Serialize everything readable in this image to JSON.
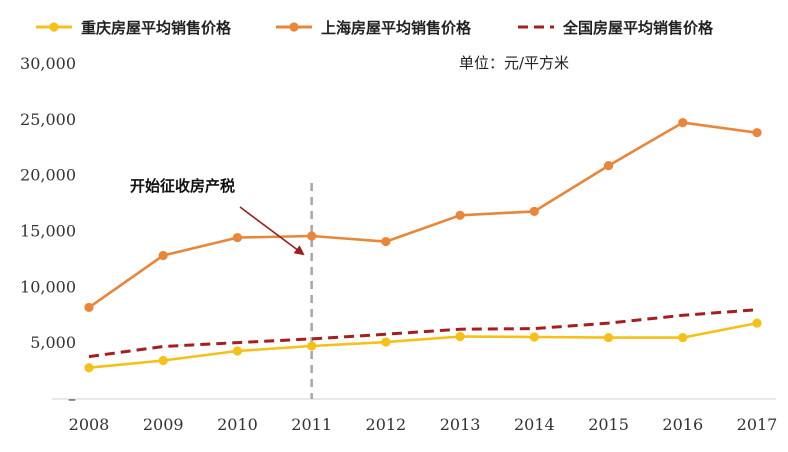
{
  "chart_data": {
    "type": "line",
    "categories": [
      "2008",
      "2009",
      "2010",
      "2011",
      "2012",
      "2013",
      "2014",
      "2015",
      "2016",
      "2017"
    ],
    "series": [
      {
        "name": "重庆房屋平均销售价格",
        "color": "#F5C018",
        "style": "solid-marker",
        "values": [
          2800,
          3450,
          4300,
          4750,
          5100,
          5600,
          5550,
          5500,
          5500,
          6800
        ]
      },
      {
        "name": "上海房屋平均销售价格",
        "color": "#E8863A",
        "style": "solid-marker",
        "values": [
          8200,
          12850,
          14450,
          14600,
          14100,
          16450,
          16800,
          20900,
          24750,
          23850
        ]
      },
      {
        "name": "全国房屋平均销售价格",
        "color": "#A81E1E",
        "style": "dashed",
        "values": [
          3800,
          4700,
          5050,
          5380,
          5800,
          6250,
          6300,
          6800,
          7500,
          8000
        ]
      }
    ],
    "y_ticks": [
      "–",
      "5,000",
      "10,000",
      "15,000",
      "20,000",
      "25,000",
      "30,000"
    ],
    "ylim": [
      0,
      30000
    ],
    "unit": "单位：元/平方米",
    "annotation": {
      "text": "开始征收房产税",
      "target_category": "2011"
    },
    "legend_position": "top",
    "grid": false
  }
}
